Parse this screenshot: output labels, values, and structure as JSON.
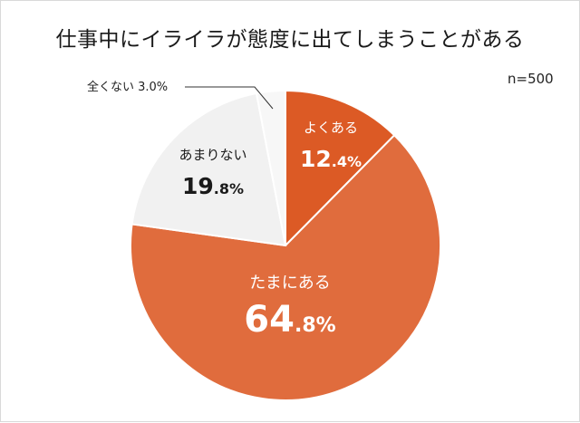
{
  "chart_data": {
    "type": "pie",
    "title": "仕事中にイライラが態度に出てしまうことがある",
    "sample_size_label": "n=500",
    "start_angle": "12 o'clock, clockwise",
    "slices": [
      {
        "label": "よくある",
        "value": 12.4,
        "int": "12",
        "dec": ".4%",
        "color": "#dc5a25"
      },
      {
        "label": "たまにある",
        "value": 64.8,
        "int": "64",
        "dec": ".8%",
        "color": "#e06c3d"
      },
      {
        "label": "あまりない",
        "value": 19.8,
        "int": "19",
        "dec": ".8%",
        "color": "#f1f1f1"
      },
      {
        "label": "全くない",
        "value": 3.0,
        "int": "3",
        "dec": ".0%",
        "color": "#f7f7f7"
      }
    ],
    "callout": "全くない 3.0%"
  }
}
